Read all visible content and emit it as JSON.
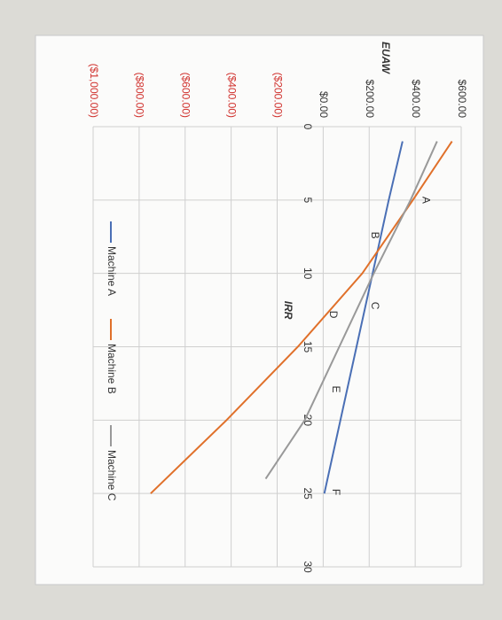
{
  "chart_data": {
    "type": "line",
    "x_label": "IRR",
    "y_label": "EUAW",
    "xlim": [
      0,
      30
    ],
    "xticks": [
      0,
      5,
      10,
      15,
      20,
      25,
      30
    ],
    "ylim": [
      -1000,
      600
    ],
    "yticks": [
      {
        "value": 600,
        "label": "$600.00"
      },
      {
        "value": 400,
        "label": "$400.00"
      },
      {
        "value": 200,
        "label": "$200.00"
      },
      {
        "value": 0,
        "label": "$0.00"
      },
      {
        "value": -200,
        "label": "($200.00)"
      },
      {
        "value": -400,
        "label": "($400.00)"
      },
      {
        "value": -600,
        "label": "($600.00)"
      },
      {
        "value": -800,
        "label": "($800.00)"
      },
      {
        "value": -1000,
        "label": "($1,000.00)"
      }
    ],
    "grid": true,
    "legend": "bottom",
    "series": [
      {
        "name": "Machine A",
        "color": "#4a6fb5",
        "x": [
          1,
          5,
          10,
          15,
          20,
          25
        ],
        "values": [
          345,
          285,
          215,
          145,
          75,
          5
        ]
      },
      {
        "name": "Machine B",
        "color": "#e0702a",
        "x": [
          1,
          5,
          10,
          15,
          20,
          25
        ],
        "values": [
          560,
          390,
          170,
          -110,
          -420,
          -750
        ]
      },
      {
        "name": "Machine C",
        "color": "#999999",
        "x": [
          1,
          5,
          10,
          15,
          20,
          24
        ],
        "values": [
          495,
          380,
          220,
          70,
          -80,
          -250
        ]
      }
    ],
    "annotations": [
      {
        "text": "A",
        "x": 5,
        "y": 445
      },
      {
        "text": "B",
        "x": 7.4,
        "y": 222
      },
      {
        "text": "C",
        "x": 12.2,
        "y": 222
      },
      {
        "text": "D",
        "x": 12.8,
        "y": 41
      },
      {
        "text": "E",
        "x": 17.9,
        "y": 53
      },
      {
        "text": "F",
        "x": 24.9,
        "y": 53
      }
    ]
  }
}
